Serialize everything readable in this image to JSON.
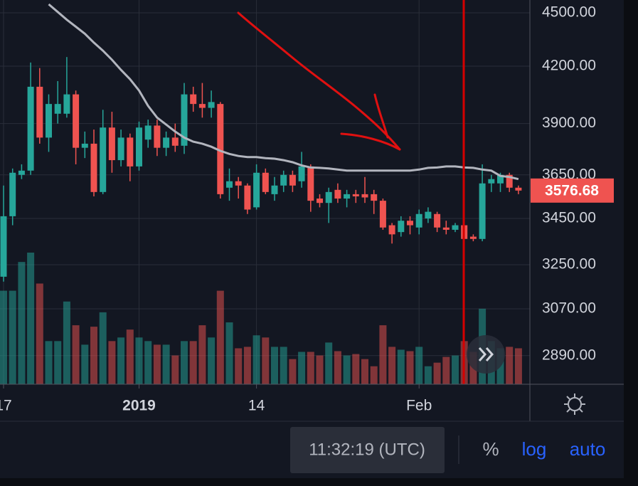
{
  "chart_data": {
    "type": "candlestick",
    "categories": [
      "17",
      null,
      null,
      null,
      null,
      null,
      null,
      null,
      null,
      null,
      null,
      null,
      null,
      null,
      null,
      "2019",
      null,
      null,
      null,
      null,
      null,
      null,
      null,
      null,
      null,
      null,
      null,
      null,
      "14",
      null,
      null,
      null,
      null,
      null,
      null,
      null,
      null,
      null,
      null,
      null,
      null,
      null,
      null,
      null,
      null,
      null,
      "Feb",
      null,
      null,
      null,
      null,
      null,
      null,
      null,
      null,
      null,
      null,
      null
    ],
    "open": [
      3200,
      3460,
      3650,
      3670,
      4090,
      3830,
      3950,
      3950,
      4050,
      3780,
      3800,
      3570,
      3880,
      3720,
      3830,
      3690,
      3820,
      3890,
      3780,
      3830,
      3790,
      4050,
      4000,
      3980,
      4000,
      3590,
      3620,
      3600,
      3500,
      3660,
      3560,
      3600,
      3650,
      3620,
      3690,
      3540,
      3520,
      3580,
      3540,
      3560,
      3560,
      3560,
      3530,
      3420,
      3390,
      3440,
      3410,
      3450,
      3470,
      3410,
      3400,
      3420,
      3370,
      3360,
      3610,
      3610,
      3650,
      3590
    ],
    "high": [
      3600,
      3680,
      3700,
      4220,
      4190,
      4050,
      4120,
      4250,
      4070,
      3860,
      3870,
      3970,
      3960,
      3870,
      3850,
      3910,
      3920,
      3920,
      3860,
      3900,
      4110,
      4090,
      4110,
      4070,
      4010,
      3680,
      3640,
      3610,
      3700,
      3680,
      3640,
      3670,
      3670,
      3760,
      3700,
      3560,
      3590,
      3610,
      3580,
      3580,
      3640,
      3580,
      3540,
      3430,
      3460,
      3460,
      3490,
      3500,
      3480,
      3440,
      3430,
      3440,
      3380,
      3700,
      3650,
      3660,
      3660,
      3600
    ],
    "low": [
      3180,
      3420,
      3630,
      3650,
      3800,
      3760,
      3900,
      3930,
      3700,
      3730,
      3550,
      3560,
      3660,
      3690,
      3620,
      3670,
      3780,
      3740,
      3740,
      3760,
      3750,
      3960,
      3930,
      3930,
      3540,
      3530,
      3540,
      3470,
      3490,
      3560,
      3530,
      3570,
      3570,
      3590,
      3480,
      3500,
      3430,
      3520,
      3500,
      3520,
      3520,
      3470,
      3400,
      3340,
      3370,
      3380,
      3380,
      3430,
      3390,
      3380,
      3390,
      3340,
      3350,
      3350,
      3570,
      3570,
      3570,
      3560
    ],
    "close": [
      3460,
      3660,
      3670,
      4090,
      3830,
      4000,
      4000,
      4050,
      3780,
      3800,
      3570,
      3880,
      3720,
      3830,
      3690,
      3880,
      3890,
      3780,
      3830,
      3790,
      4050,
      4000,
      3980,
      4010,
      3560,
      3620,
      3600,
      3490,
      3660,
      3570,
      3600,
      3650,
      3600,
      3690,
      3530,
      3520,
      3570,
      3540,
      3560,
      3550,
      3545,
      3530,
      3410,
      3380,
      3440,
      3420,
      3470,
      3480,
      3410,
      3400,
      3420,
      3360,
      3360,
      3610,
      3630,
      3650,
      3590,
      3576.68
    ],
    "volume": [
      130,
      130,
      170,
      183,
      140,
      60,
      60,
      115,
      82,
      55,
      80,
      100,
      60,
      65,
      76,
      65,
      60,
      55,
      55,
      40,
      60,
      60,
      82,
      65,
      130,
      86,
      50,
      52,
      68,
      65,
      52,
      52,
      35,
      45,
      45,
      40,
      58,
      46,
      40,
      42,
      35,
      25,
      82,
      52,
      48,
      46,
      52,
      25,
      30,
      38,
      40,
      60,
      45,
      105,
      60,
      50,
      52,
      50
    ],
    "ma": [
      null,
      null,
      null,
      null,
      null,
      4550,
      4505,
      4460,
      4420,
      4380,
      4330,
      4285,
      4235,
      4180,
      4130,
      4070,
      3990,
      3930,
      3895,
      3860,
      3830,
      3810,
      3800,
      3785,
      3765,
      3750,
      3740,
      3735,
      3735,
      3730,
      3727,
      3720,
      3710,
      3695,
      3685,
      3683,
      3680,
      3675,
      3670,
      3670,
      3670,
      3670,
      3670,
      3670,
      3670,
      3670,
      3675,
      3683,
      3685,
      3690,
      3690,
      3685,
      3683,
      3675,
      3670,
      3645,
      3640,
      3630
    ],
    "up_color": "#26a69a",
    "down_color": "#ef5350",
    "ma_color": "#b2b5be",
    "ylim": [
      2785,
      4575
    ],
    "log_scale": true,
    "grid": true,
    "yticks": [
      {
        "value": 4500,
        "label": "4500.00"
      },
      {
        "value": 4200,
        "label": "4200.00"
      },
      {
        "value": 3900,
        "label": "3900.00"
      },
      {
        "value": 3650,
        "label": "3650.00"
      },
      {
        "value": 3450,
        "label": "3450.00"
      },
      {
        "value": 3250,
        "label": "3250.00"
      },
      {
        "value": 3070,
        "label": "3070.00"
      },
      {
        "value": 2890,
        "label": "2890.00"
      }
    ]
  },
  "ui": {
    "time": "11:32:19 (UTC)",
    "percent": "%",
    "log": "log",
    "auto": "auto"
  }
}
